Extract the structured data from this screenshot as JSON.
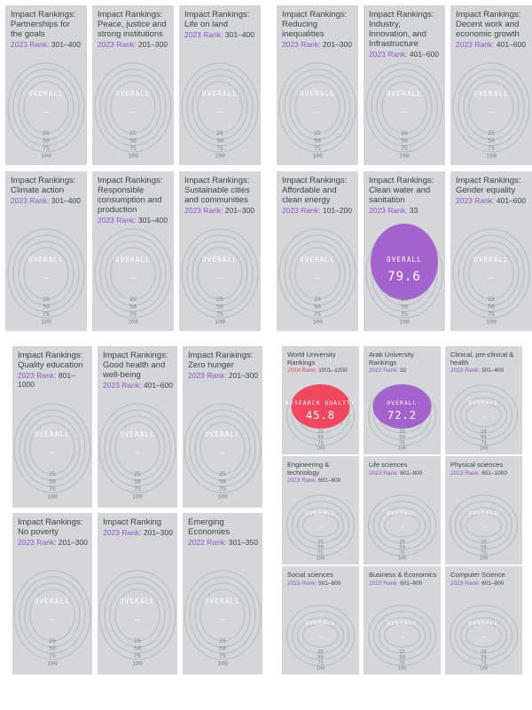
{
  "quadrants": [
    {
      "id": "q1",
      "cards": [
        {
          "title": "Impact Rankings: Partnerships for the goals",
          "rank_label": "2023 Rank:",
          "rank_value": "301–400",
          "overall_label": "OVERALL",
          "score": "—"
        },
        {
          "title": "Impact Rankings: Peace, justice and strong institutions",
          "rank_label": "2023 Rank:",
          "rank_value": "201–300",
          "overall_label": "OVERALL",
          "score": "—"
        },
        {
          "title": "Impact Rankings: Life on land",
          "rank_label": "2023 Rank:",
          "rank_value": "301–400",
          "overall_label": "OVERALL",
          "score": "—"
        },
        {
          "title": "Impact Rankings: Climate action",
          "rank_label": "2023 Rank:",
          "rank_value": "301–400",
          "overall_label": "OVERALL",
          "score": "—"
        },
        {
          "title": "Impact Rankings: Responsible consumption and production",
          "rank_label": "2023 Rank:",
          "rank_value": "301–400",
          "overall_label": "OVERALL",
          "score": "—"
        },
        {
          "title": "Impact Rankings: Sustainable cities and communities",
          "rank_label": "2023 Rank:",
          "rank_value": "201–300",
          "overall_label": "OVERALL",
          "score": "—"
        }
      ]
    },
    {
      "id": "q2",
      "cards": [
        {
          "title": "Impact Rankings: Reducing inequalities",
          "rank_label": "2023 Rank:",
          "rank_value": "201–300",
          "overall_label": "OVERALL",
          "score": "—"
        },
        {
          "title": "Impact Rankings: Industry, Innovation, and Infrastructure",
          "rank_label": "2023 Rank:",
          "rank_value": "401–600",
          "overall_label": "OVERALL",
          "score": "—"
        },
        {
          "title": "Impact Rankings: Decent work and economic growth",
          "rank_label": "2023 Rank:",
          "rank_value": "401–600",
          "overall_label": "OVERALL",
          "score": "—"
        },
        {
          "title": "Impact Rankings: Affordable and clean energy",
          "rank_label": "2023 Rank:",
          "rank_value": "101–200",
          "overall_label": "OVERALL",
          "score": "—"
        },
        {
          "title": "Impact Rankings: Clean water and sanitation",
          "rank_label": "2023 Rank:",
          "rank_value": "33",
          "overall_label": "OVERALL",
          "score": "79.6",
          "highlight": "#a463cc"
        },
        {
          "title": "Impact Rankings: Gender equality",
          "rank_label": "2023 Rank:",
          "rank_value": "401–600",
          "overall_label": "OVERALL",
          "score": "—"
        }
      ]
    },
    {
      "id": "q3",
      "cards": [
        {
          "title": "Impact Rankings: Quality education",
          "rank_label": "2023 Rank:",
          "rank_value": "801–1000",
          "overall_label": "OVERALL",
          "score": "—"
        },
        {
          "title": "Impact Rankings: Good health and well-being",
          "rank_label": "2023 Rank:",
          "rank_value": "401–600",
          "overall_label": "OVERALL",
          "score": "—"
        },
        {
          "title": "Impact Rankings: Zero hunger",
          "rank_label": "2023 Rank:",
          "rank_value": "201–300",
          "overall_label": "OVERALL",
          "score": "—"
        },
        {
          "title": "Impact Rankings: No poverty",
          "rank_label": "2023 Rank:",
          "rank_value": "201–300",
          "overall_label": "OVERALL",
          "score": "—"
        },
        {
          "title": "Impact Ranking",
          "rank_label": "2023 Rank:",
          "rank_value": "201–300",
          "overall_label": "OVERALL",
          "score": "—"
        },
        {
          "title": "Emerging Economies",
          "rank_label": "2022 Rank:",
          "rank_value": "301–350",
          "overall_label": "OVERALL",
          "score": "—"
        }
      ]
    },
    {
      "id": "q4",
      "cards": [
        {
          "title": "World University Rankings",
          "rank_label": "2024 Rank:",
          "rank_value": "1001–1200",
          "rank_color": "red",
          "overall_label": "RESEARCH QUALITY",
          "score": "45.8",
          "highlight": "#f0485e"
        },
        {
          "title": "Arab University Rankings",
          "rank_label": "2022 Rank:",
          "rank_value": "32",
          "overall_label": "OVERALL",
          "score": "72.2",
          "highlight": "#a463cc"
        },
        {
          "title": "Clinical, pre-clinical & health",
          "rank_label": "2023 Rank:",
          "rank_value": "301–400",
          "overall_label": "OVERALL",
          "score": "—"
        },
        {
          "title": "Engineering & technology",
          "rank_label": "2023 Rank:",
          "rank_value": "601–800",
          "overall_label": "OVERALL",
          "score": "—"
        },
        {
          "title": "Life sciences",
          "rank_label": "2023 Rank:",
          "rank_value": "601–800",
          "overall_label": "OVERALL",
          "score": "—"
        },
        {
          "title": "Physical sciences",
          "rank_label": "2023 Rank:",
          "rank_value": "801–1000",
          "overall_label": "OVERALL",
          "score": "—"
        },
        {
          "title": "Social sciences",
          "rank_label": "2023 Rank:",
          "rank_value": "501–600",
          "overall_label": "OVERALL",
          "score": "—"
        },
        {
          "title": "Business & Economics",
          "rank_label": "2023 Rank:",
          "rank_value": "601–800",
          "overall_label": "OVERALL",
          "score": "—"
        },
        {
          "title": "Computer Science",
          "rank_label": "2023 Rank:",
          "rank_value": "601–800",
          "overall_label": "OVERALL",
          "score": "—"
        }
      ]
    }
  ],
  "scale_ticks": [
    "25",
    "50",
    "75",
    "100"
  ]
}
